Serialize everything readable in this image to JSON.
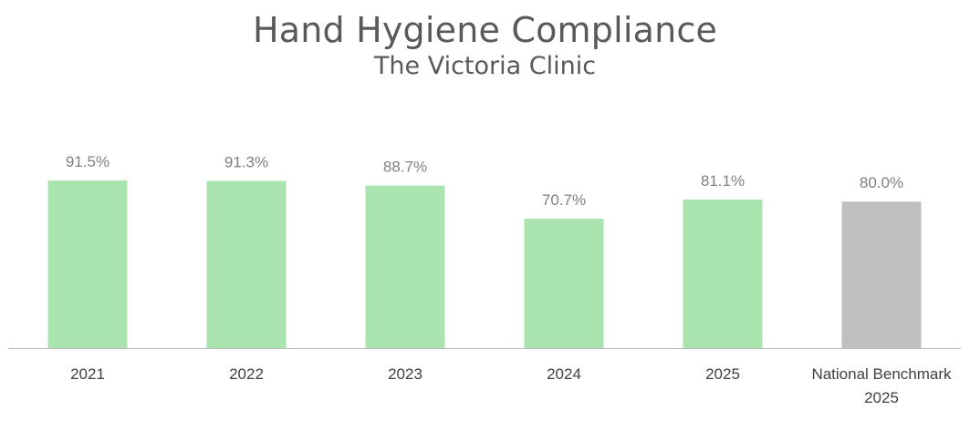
{
  "chart_data": {
    "type": "bar",
    "title": "Hand Hygiene Compliance",
    "subtitle": "The Victoria Clinic",
    "categories": [
      [
        "2021"
      ],
      [
        "2022"
      ],
      [
        "2023"
      ],
      [
        "2024"
      ],
      [
        "2025"
      ],
      [
        "National Benchmark",
        "2025"
      ]
    ],
    "values": [
      91.5,
      91.3,
      88.7,
      70.7,
      81.1,
      80.0
    ],
    "value_labels": [
      "91.5%",
      "91.3%",
      "88.7%",
      "70.7%",
      "81.1%",
      "80.0%"
    ],
    "bar_colors": [
      "#a9e4ae",
      "#a9e4ae",
      "#a9e4ae",
      "#a9e4ae",
      "#a9e4ae",
      "#bfbfbf"
    ],
    "ylim": [
      0,
      100
    ],
    "grid": false,
    "legend": "none"
  }
}
